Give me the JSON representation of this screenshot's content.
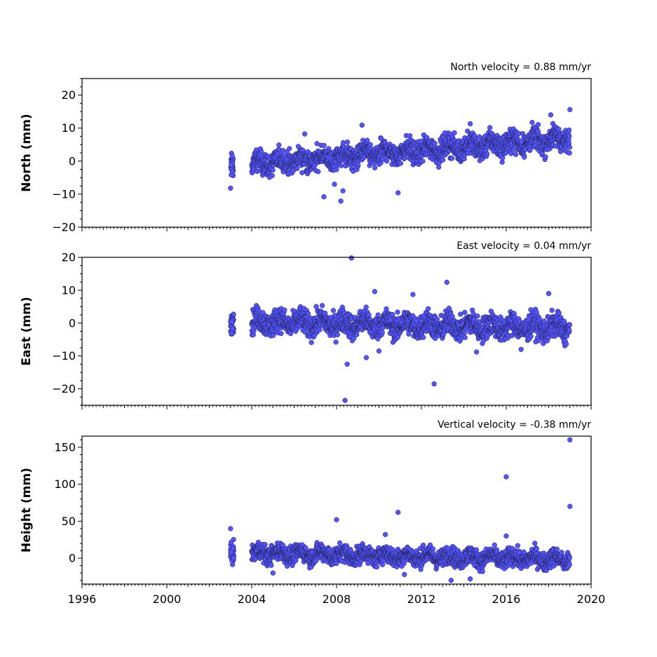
{
  "colors": {
    "marker_fill": "#5555ff",
    "marker_edge": "#1a1a40",
    "axis": "#000000"
  },
  "x_ticks": [
    "1996",
    "2000",
    "2004",
    "2008",
    "2012",
    "2016",
    "2020"
  ],
  "chart_data": [
    {
      "type": "scatter",
      "title": "North velocity = 0.88 mm/yr",
      "ylabel": "North (mm)",
      "xlim": [
        1996,
        2020
      ],
      "ylim": [
        -20,
        25
      ],
      "yticks": [
        "−20",
        "−10",
        "0",
        "10",
        "20"
      ],
      "grid": false,
      "trend": {
        "start": [
          2003.0,
          -1.5
        ],
        "end": [
          2019.0,
          7.0
        ]
      },
      "noise": 2.4,
      "outliers": [
        [
          2003.0,
          -8.2
        ],
        [
          2007.4,
          -10.8
        ],
        [
          2008.2,
          -12.1
        ],
        [
          2008.3,
          -9.0
        ],
        [
          2009.2,
          10.9
        ],
        [
          2010.9,
          -9.6
        ],
        [
          2013.1,
          8.5
        ],
        [
          2014.3,
          11.3
        ],
        [
          2018.1,
          14.0
        ],
        [
          2019.0,
          15.6
        ],
        [
          2006.5,
          8.2
        ],
        [
          2007.9,
          -7.0
        ]
      ],
      "gap": [
        2003.2,
        2004.0
      ]
    },
    {
      "type": "scatter",
      "title": "East velocity = 0.04 mm/yr",
      "ylabel": "East (mm)",
      "xlim": [
        1996,
        2020
      ],
      "ylim": [
        -25,
        20
      ],
      "yticks": [
        "−20",
        "−10",
        "0",
        "10",
        "20"
      ],
      "grid": false,
      "trend": {
        "start": [
          2003.0,
          0.5
        ],
        "end": [
          2019.0,
          -1.5
        ]
      },
      "noise": 2.6,
      "outliers": [
        [
          2008.7,
          19.8
        ],
        [
          2008.4,
          -23.5
        ],
        [
          2012.6,
          -18.5
        ],
        [
          2013.2,
          12.4
        ],
        [
          2009.8,
          9.6
        ],
        [
          2008.5,
          -12.5
        ],
        [
          2009.4,
          -10.5
        ],
        [
          2011.6,
          8.7
        ],
        [
          2018.0,
          9.0
        ],
        [
          2016.7,
          -8.0
        ],
        [
          2014.6,
          -8.8
        ],
        [
          2010.0,
          -8.5
        ]
      ],
      "gap": [
        2003.2,
        2004.0
      ]
    },
    {
      "type": "scatter",
      "title": "Vertical velocity = -0.38 mm/yr",
      "ylabel": "Height (mm)",
      "xlim": [
        1996,
        2020
      ],
      "ylim": [
        -35,
        165
      ],
      "yticks": [
        "0",
        "50",
        "100",
        "150"
      ],
      "grid": false,
      "trend": {
        "start": [
          2003.0,
          8.0
        ],
        "end": [
          2019.0,
          -2.0
        ]
      },
      "noise": 8.5,
      "outliers": [
        [
          2003.0,
          40.0
        ],
        [
          2008.0,
          52.0
        ],
        [
          2010.9,
          62.0
        ],
        [
          2016.0,
          110.0
        ],
        [
          2016.0,
          30.0
        ],
        [
          2019.0,
          160.0
        ],
        [
          2019.0,
          70.0
        ],
        [
          2013.4,
          -30.0
        ],
        [
          2011.2,
          -22.0
        ],
        [
          2005.0,
          -20.0
        ],
        [
          2014.3,
          -28.0
        ],
        [
          2010.3,
          32.0
        ]
      ],
      "gap": [
        2003.2,
        2004.0
      ]
    }
  ]
}
